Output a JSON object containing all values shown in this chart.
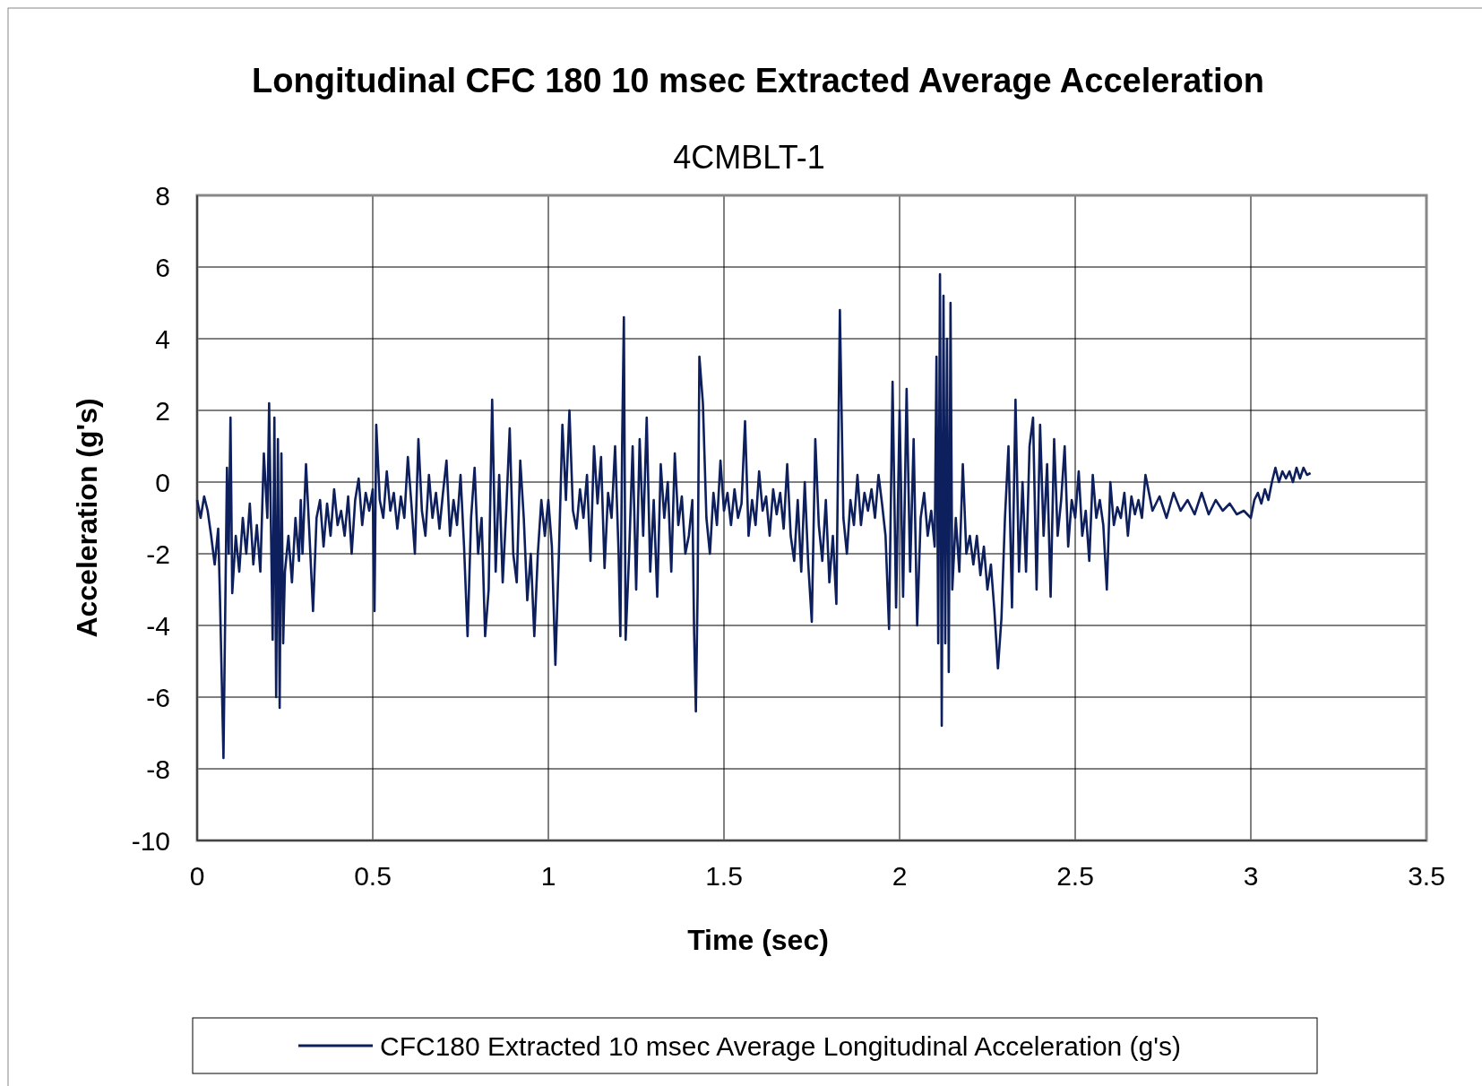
{
  "chart_data": {
    "type": "line",
    "title": "Longitudinal CFC 180 10 msec Extracted Average Acceleration",
    "subtitle": "4CMBLT-1",
    "xlabel": "Time (sec)",
    "ylabel": "Acceleration (g's)",
    "xlim": [
      0,
      3.5
    ],
    "xticks": [
      0,
      0.5,
      1,
      1.5,
      2,
      2.5,
      3,
      3.5
    ],
    "ylim": [
      -10,
      8
    ],
    "yticks": [
      -10,
      -8,
      -6,
      -4,
      -2,
      0,
      2,
      4,
      6,
      8
    ],
    "grid": true,
    "legend": "bottom",
    "marker": "none",
    "line_style": "solid",
    "x": [
      0,
      0.01,
      0.02,
      0.03,
      0.04,
      0.05,
      0.06,
      0.065,
      0.075,
      0.085,
      0.09,
      0.095,
      0.1,
      0.11,
      0.12,
      0.13,
      0.14,
      0.15,
      0.16,
      0.17,
      0.18,
      0.19,
      0.2,
      0.205,
      0.215,
      0.22,
      0.225,
      0.23,
      0.235,
      0.24,
      0.245,
      0.25,
      0.26,
      0.27,
      0.28,
      0.29,
      0.295,
      0.3,
      0.31,
      0.32,
      0.33,
      0.34,
      0.35,
      0.36,
      0.37,
      0.38,
      0.39,
      0.4,
      0.41,
      0.42,
      0.43,
      0.44,
      0.45,
      0.46,
      0.47,
      0.48,
      0.49,
      0.5,
      0.505,
      0.51,
      0.52,
      0.53,
      0.54,
      0.55,
      0.56,
      0.57,
      0.58,
      0.59,
      0.6,
      0.61,
      0.62,
      0.63,
      0.64,
      0.65,
      0.66,
      0.67,
      0.68,
      0.69,
      0.7,
      0.71,
      0.72,
      0.73,
      0.74,
      0.75,
      0.76,
      0.77,
      0.78,
      0.79,
      0.8,
      0.81,
      0.82,
      0.83,
      0.84,
      0.85,
      0.86,
      0.87,
      0.88,
      0.89,
      0.9,
      0.91,
      0.92,
      0.93,
      0.94,
      0.95,
      0.96,
      0.97,
      0.98,
      0.99,
      1.0,
      1.01,
      1.02,
      1.03,
      1.04,
      1.05,
      1.06,
      1.07,
      1.08,
      1.09,
      1.1,
      1.11,
      1.12,
      1.13,
      1.14,
      1.15,
      1.16,
      1.17,
      1.18,
      1.19,
      1.2,
      1.205,
      1.21,
      1.215,
      1.22,
      1.23,
      1.24,
      1.25,
      1.26,
      1.27,
      1.28,
      1.29,
      1.3,
      1.31,
      1.32,
      1.33,
      1.34,
      1.35,
      1.36,
      1.37,
      1.38,
      1.39,
      1.4,
      1.41,
      1.415,
      1.42,
      1.425,
      1.43,
      1.44,
      1.45,
      1.46,
      1.47,
      1.48,
      1.49,
      1.5,
      1.51,
      1.52,
      1.53,
      1.54,
      1.55,
      1.56,
      1.57,
      1.58,
      1.59,
      1.6,
      1.61,
      1.62,
      1.63,
      1.64,
      1.65,
      1.66,
      1.67,
      1.68,
      1.69,
      1.7,
      1.71,
      1.72,
      1.73,
      1.74,
      1.75,
      1.76,
      1.77,
      1.78,
      1.79,
      1.8,
      1.81,
      1.82,
      1.83,
      1.84,
      1.85,
      1.86,
      1.87,
      1.88,
      1.89,
      1.9,
      1.91,
      1.92,
      1.93,
      1.94,
      1.95,
      1.96,
      1.97,
      1.98,
      1.99,
      2.0,
      2.01,
      2.02,
      2.03,
      2.04,
      2.05,
      2.06,
      2.07,
      2.08,
      2.09,
      2.1,
      2.105,
      2.11,
      2.115,
      2.12,
      2.125,
      2.13,
      2.135,
      2.14,
      2.145,
      2.15,
      2.16,
      2.17,
      2.18,
      2.19,
      2.2,
      2.21,
      2.22,
      2.23,
      2.24,
      2.25,
      2.26,
      2.27,
      2.28,
      2.29,
      2.3,
      2.31,
      2.32,
      2.33,
      2.34,
      2.35,
      2.36,
      2.37,
      2.38,
      2.39,
      2.4,
      2.41,
      2.42,
      2.43,
      2.44,
      2.45,
      2.46,
      2.47,
      2.48,
      2.49,
      2.5,
      2.51,
      2.52,
      2.53,
      2.54,
      2.55,
      2.56,
      2.57,
      2.58,
      2.59,
      2.6,
      2.61,
      2.62,
      2.63,
      2.64,
      2.65,
      2.66,
      2.67,
      2.68,
      2.69,
      2.7,
      2.72,
      2.74,
      2.76,
      2.78,
      2.8,
      2.82,
      2.84,
      2.86,
      2.88,
      2.9,
      2.92,
      2.94,
      2.96,
      2.98,
      3.0,
      3.01,
      3.02,
      3.03,
      3.04,
      3.05,
      3.06,
      3.07,
      3.08,
      3.09,
      3.1,
      3.11,
      3.12,
      3.13,
      3.14,
      3.15,
      3.16,
      3.17
    ],
    "series": [
      {
        "name": "CFC180 Extracted 10 msec Average Longitudinal Acceleration (g's)",
        "color": "#0d1f5c",
        "values": [
          -0.5,
          -1.0,
          -0.4,
          -0.8,
          -1.5,
          -2.3,
          -1.3,
          -3.2,
          -7.7,
          0.4,
          -2.0,
          1.8,
          -3.1,
          -1.5,
          -2.5,
          -1.0,
          -2.0,
          -0.6,
          -2.3,
          -1.2,
          -2.5,
          0.8,
          -1.0,
          2.2,
          -4.4,
          1.8,
          -6.0,
          1.2,
          -6.3,
          0.8,
          -4.5,
          -2.5,
          -1.5,
          -2.8,
          -1.0,
          -2.2,
          -0.5,
          -2.0,
          0.5,
          -1.5,
          -3.6,
          -1.0,
          -0.5,
          -1.8,
          -0.6,
          -1.5,
          -0.2,
          -1.2,
          -0.8,
          -1.5,
          -0.4,
          -2.0,
          -0.5,
          0.1,
          -1.2,
          -0.3,
          -0.8,
          -0.2,
          -3.6,
          1.6,
          -0.5,
          -1.0,
          0.3,
          -0.8,
          -0.3,
          -1.3,
          -0.4,
          -1.0,
          0.7,
          -0.6,
          -2.0,
          1.2,
          -0.8,
          -1.5,
          0.2,
          -1.0,
          -0.3,
          -1.3,
          -0.3,
          0.6,
          -1.5,
          -0.5,
          -1.2,
          0.2,
          -1.8,
          -4.3,
          -1.0,
          0.4,
          -2.0,
          -1.0,
          -4.3,
          -3.0,
          2.3,
          -2.5,
          0.2,
          -2.8,
          -0.8,
          1.5,
          -2.0,
          -2.8,
          0.6,
          -1.0,
          -3.3,
          -2.0,
          -4.3,
          -2.0,
          -0.5,
          -1.5,
          -0.5,
          -1.8,
          -5.1,
          -2.0,
          1.6,
          -0.5,
          2.0,
          -0.8,
          -1.3,
          -0.2,
          -1.0,
          0.2,
          -2.2,
          1.0,
          -0.6,
          0.7,
          -2.4,
          -0.3,
          -1.0,
          1.0,
          -2.0,
          -4.3,
          1.0,
          4.6,
          -4.4,
          -2.0,
          1.0,
          -3.0,
          1.2,
          -1.5,
          1.8,
          -2.5,
          -0.5,
          -3.2,
          0.5,
          -1.0,
          0.0,
          -2.5,
          0.8,
          -1.2,
          -0.4,
          -2.0,
          -1.5,
          -0.5,
          -4.2,
          -6.4,
          -3.0,
          3.5,
          2.2,
          -1.0,
          -2.0,
          -0.3,
          -1.2,
          0.6,
          -0.8,
          -0.3,
          -1.2,
          -0.2,
          -1.0,
          -0.6,
          1.7,
          -1.5,
          -0.5,
          -1.2,
          0.3,
          -0.8,
          -0.4,
          -1.5,
          -0.2,
          -0.9,
          -0.3,
          -1.3,
          0.5,
          -1.5,
          -2.2,
          -0.5,
          -2.5,
          0.0,
          -2.3,
          -3.9,
          1.2,
          -1.2,
          -2.2,
          -0.5,
          -2.8,
          -1.5,
          -3.4,
          4.8,
          -1.0,
          -2.0,
          -0.5,
          -1.2,
          0.2,
          -1.2,
          -0.3,
          -0.8,
          -0.2,
          -1.0,
          0.2,
          -0.6,
          -1.5,
          -4.1,
          2.8,
          -3.5,
          2.0,
          -3.2,
          2.6,
          -2.5,
          1.2,
          -4.0,
          -1.0,
          -0.3,
          -1.5,
          -0.8,
          -1.8,
          3.5,
          -4.5,
          5.8,
          -6.8,
          5.2,
          -4.5,
          4.0,
          -5.3,
          5.0,
          -3.0,
          -1.0,
          -2.5,
          0.5,
          -2.0,
          -1.5,
          -2.3,
          -1.5,
          -2.6,
          -1.8,
          -3.0,
          -2.3,
          -3.6,
          -5.2,
          -3.8,
          -1.0,
          1.0,
          -3.5,
          2.3,
          -2.5,
          0.0,
          -2.5,
          1.0,
          1.8,
          -3.0,
          1.6,
          -1.5,
          0.5,
          -3.2,
          1.2,
          -1.5,
          -0.5,
          1.0,
          -1.8,
          -0.5,
          -1.0,
          0.3,
          -1.5,
          -0.8,
          -2.2,
          0.2,
          -1.0,
          -0.5,
          -1.2,
          -3.0,
          0.0,
          -1.2,
          -0.7,
          -1.0,
          -0.3,
          -1.5,
          -0.4,
          -0.9,
          -0.5,
          -1.0,
          0.2,
          -0.8,
          -0.4,
          -1.0,
          -0.3,
          -0.8,
          -0.5,
          -0.9,
          -0.3,
          -0.9,
          -0.5,
          -0.8,
          -0.6,
          -0.9,
          -0.8,
          -1.0,
          -0.5,
          -0.3,
          -0.6,
          -0.2,
          -0.5,
          0.0,
          0.4,
          0.0,
          0.3,
          0.1,
          0.3,
          0.0,
          0.4,
          0.1,
          0.4,
          0.2,
          0.25
        ]
      }
    ]
  }
}
